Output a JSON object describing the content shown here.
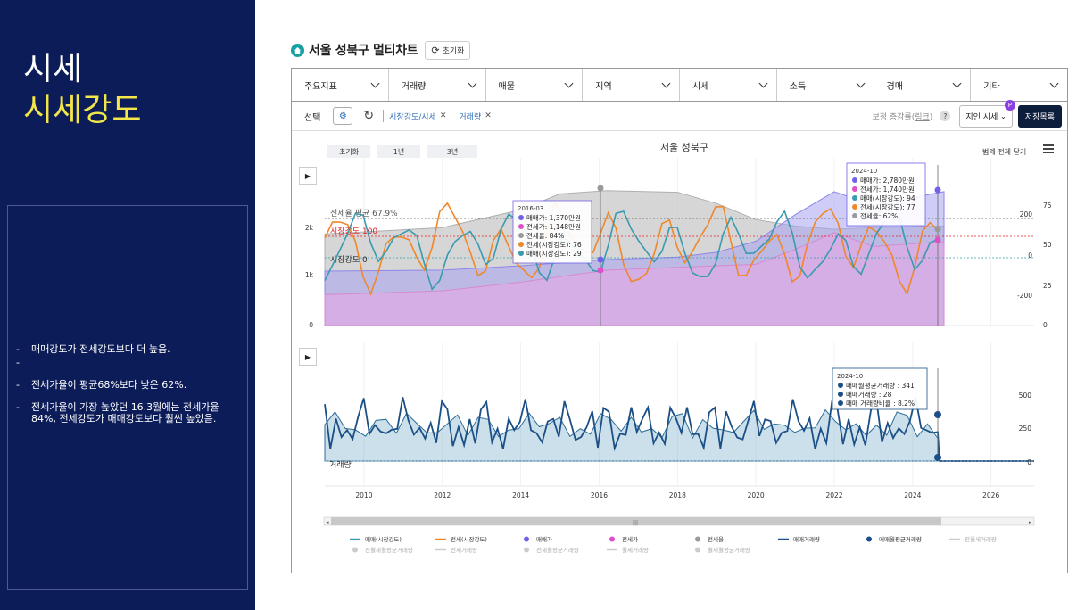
{
  "slide": {
    "title_line1": "시세",
    "title_line2": "시세강도",
    "notes": [
      "매매강도가 전세강도보다 더 높음.",
      "",
      "전세가율이 평균68%보다 낮은 62%.",
      "전세가율이 가장 높았던 16.3월에는 전세가율 84%, 전세강도가 매매강도보다 훨씬 높았음."
    ]
  },
  "header": {
    "title": "서울 성북구 멀티차트",
    "reset_label": "초기화"
  },
  "tabs": [
    "주요지표",
    "거래량",
    "매물",
    "지역",
    "시세",
    "소득",
    "경매",
    "기타"
  ],
  "selection": {
    "label": "선택",
    "chips": [
      "시장강도/시세",
      "거래량"
    ],
    "adjust_text": "보정 증감률(",
    "adjust_link": "링크",
    "adjust_close": ")",
    "dropdown": "지인 시세",
    "badge": "P",
    "save_button": "저장목록"
  },
  "chart_controls": {
    "buttons": [
      "초기화",
      "1년",
      "3년"
    ],
    "title": "서울 성북구",
    "legend_close": "범례 전체 닫기"
  },
  "colors": {
    "jeonse_strength": "#f0882a",
    "sale_strength": "#3a9ab0",
    "sale_price": "#7062e6",
    "jeonse_price": "#e04fc8",
    "jeonse_rate": "#9a9a9a",
    "volume": "#1b4f86"
  },
  "chart_data": [
    {
      "type": "line",
      "x_ticks": [
        "2010",
        "2012",
        "2014",
        "2016",
        "2018",
        "2020",
        "2022",
        "2024",
        "2026"
      ],
      "y_left_ticks": [
        "0",
        "1k",
        "2k"
      ],
      "y_mid_ticks": [
        "-200",
        "0",
        "200"
      ],
      "y_right_ticks": [
        "0",
        "25",
        "50",
        "75"
      ],
      "ref_lines": [
        {
          "label": "전세율 평균 67.9%",
          "color": "#555"
        },
        {
          "label": "시장강도 100",
          "color": "#e02020"
        },
        {
          "label": "시장강도 0",
          "color": "#333"
        }
      ],
      "tooltips": [
        {
          "title": "2016-03",
          "rows": [
            {
              "text": "매매가: 1,370만원",
              "color": "#7062e6"
            },
            {
              "text": "전세가: 1,148만원",
              "color": "#e04fc8"
            },
            {
              "text": "전세율: 84%",
              "color": "#9a9a9a"
            },
            {
              "text": "전세(시장강도): 76",
              "color": "#f0882a"
            },
            {
              "text": "매매(시장강도): 29",
              "color": "#3a9ab0"
            }
          ]
        },
        {
          "title": "2024-10",
          "rows": [
            {
              "text": "매매가: 2,780만원",
              "color": "#7062e6"
            },
            {
              "text": "전세가: 1,740만원",
              "color": "#e04fc8"
            },
            {
              "text": "매매(시장강도): 94",
              "color": "#3a9ab0"
            },
            {
              "text": "전세(시장강도): 77",
              "color": "#f0882a"
            },
            {
              "text": "전세율: 62%",
              "color": "#9a9a9a"
            }
          ]
        }
      ],
      "series": [
        {
          "name": "매매가",
          "x": [
            2009,
            2012,
            2014,
            2016.2,
            2018,
            2019,
            2020,
            2021,
            2022,
            2023,
            2024.8
          ],
          "values": [
            1130,
            1150,
            1240,
            1370,
            1420,
            1520,
            1750,
            2300,
            2780,
            2500,
            2780
          ]
        },
        {
          "name": "전세가",
          "x": [
            2009,
            2012,
            2014,
            2016.2,
            2018,
            2020,
            2021,
            2022,
            2023,
            2024.8
          ],
          "values": [
            640,
            720,
            900,
            1148,
            1210,
            1270,
            1580,
            1930,
            1640,
            1740
          ]
        },
        {
          "name": "전세율",
          "x": [
            2009,
            2012,
            2014,
            2015,
            2016.2,
            2018,
            2019,
            2020,
            2021,
            2022,
            2023,
            2024.8
          ],
          "values": [
            57,
            61,
            72,
            82,
            84,
            83,
            76,
            66,
            62,
            60,
            61,
            62
          ]
        }
      ]
    },
    {
      "type": "line",
      "y_right_ticks": [
        "0",
        "250",
        "500"
      ],
      "label": "거래량",
      "tooltip": {
        "title": "2024-10",
        "rows": [
          {
            "text": "매매월평균거래량 : 341",
            "color": "#1b4f86"
          },
          {
            "text": "매매거래량 : 28",
            "color": "#1b4f86"
          },
          {
            "text": "매매 거래량비율 : 8.2%",
            "color": "#1b4f86"
          }
        ]
      }
    }
  ],
  "legend": {
    "row1": [
      {
        "name": "매매(시장강도)",
        "marker": "line",
        "color": "#3a9ab0"
      },
      {
        "name": "전세(시장강도)",
        "marker": "line",
        "color": "#f0882a"
      },
      {
        "name": "매매가",
        "marker": "dot",
        "color": "#7062e6"
      },
      {
        "name": "전세가",
        "marker": "dot",
        "color": "#e04fc8"
      },
      {
        "name": "전세율",
        "marker": "dot",
        "color": "#9a9a9a"
      },
      {
        "name": "매매거래량",
        "marker": "line",
        "color": "#1b4f86"
      },
      {
        "name": "매매월평균거래량",
        "marker": "dot",
        "color": "#1b4f86"
      },
      {
        "name": "전월세거래량",
        "marker": "line",
        "color": "#cccccc"
      }
    ],
    "row2": [
      {
        "name": "전월세월평균거래량",
        "marker": "dot",
        "color": "#cccccc"
      },
      {
        "name": "전세거래량",
        "marker": "line",
        "color": "#cccccc"
      },
      {
        "name": "전세월평균거래량",
        "marker": "dot",
        "color": "#cccccc"
      },
      {
        "name": "월세거래량",
        "marker": "line",
        "color": "#cccccc"
      },
      {
        "name": "월세월평균거래량",
        "marker": "dot",
        "color": "#cccccc"
      }
    ]
  }
}
